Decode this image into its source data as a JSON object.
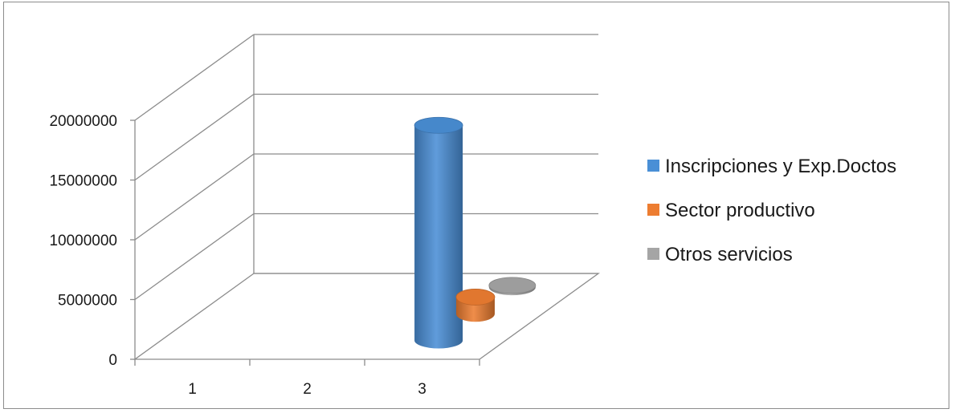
{
  "chart_data": {
    "type": "bar",
    "style": "3d-cylinder",
    "categories": [
      "1",
      "2",
      "3"
    ],
    "series": [
      {
        "name": "Inscripciones y Exp.Doctos",
        "color": "#4a8fd6",
        "values": [
          0,
          0,
          18000000
        ]
      },
      {
        "name": "Sector productivo",
        "color": "#ed7d31",
        "values": [
          0,
          0,
          1400000
        ]
      },
      {
        "name": "Otros servicios",
        "color": "#a5a5a5",
        "values": [
          0,
          0,
          150000
        ]
      }
    ],
    "ylim": [
      0,
      20000000
    ],
    "yticks": [
      "0",
      "5000000",
      "10000000",
      "15000000",
      "20000000"
    ],
    "grid": true,
    "legend": "right"
  }
}
